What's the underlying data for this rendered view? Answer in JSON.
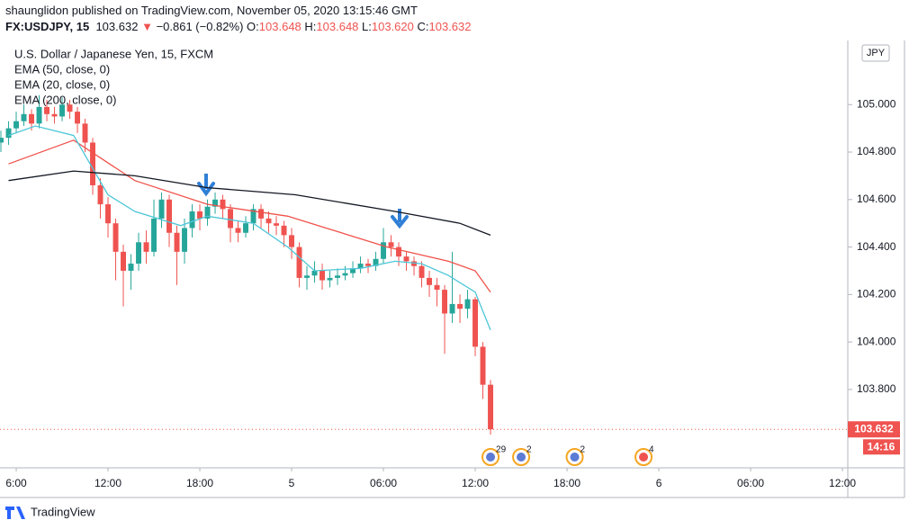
{
  "chart_data": {
    "type": "candlestick",
    "published": "shaunglidon published on TradingView.com, November 05, 2020 13:15:46 GMT",
    "quote": {
      "symbol": "FX:USDJPY, 15",
      "last": "103.632",
      "arrow": "▼",
      "change": "−0.861 (−0.82%)",
      "ohlc": [
        {
          "label": "O:",
          "value": "103.648"
        },
        {
          "label": "H:",
          "value": "103.648"
        },
        {
          "label": "L:",
          "value": "103.620"
        },
        {
          "label": "C:",
          "value": "103.632"
        }
      ]
    },
    "title": "U.S. Dollar / Japanese Yen, 15, FXCM",
    "currency": "JPY",
    "countdown": "14:16",
    "footer": "TradingView",
    "up_color": "#26a69a",
    "down_color": "#ef5350",
    "x": [
      -4,
      -2,
      0,
      2,
      4,
      6,
      8,
      10,
      12,
      14,
      16,
      18,
      20,
      22,
      24,
      26,
      28,
      30,
      32,
      34,
      36,
      38,
      40,
      42,
      44,
      46,
      48,
      50,
      52,
      54,
      56,
      58,
      60,
      62,
      64,
      66,
      68,
      70,
      72,
      74,
      76,
      78,
      80,
      82,
      84,
      86,
      88,
      90,
      92,
      94,
      96,
      98,
      100,
      102,
      104,
      106,
      108,
      110,
      112,
      114,
      116,
      118,
      120,
      122,
      124
    ],
    "open": [
      104.84,
      104.86,
      104.9,
      104.93,
      104.96,
      104.92,
      104.99,
      104.96,
      104.95,
      105.0,
      104.97,
      104.92,
      104.84,
      104.66,
      104.58,
      104.5,
      104.38,
      104.3,
      104.33,
      104.42,
      104.38,
      104.52,
      104.6,
      104.46,
      104.38,
      104.48,
      104.55,
      104.52,
      104.57,
      104.6,
      104.56,
      104.48,
      104.46,
      104.5,
      104.56,
      104.52,
      104.5,
      104.49,
      104.45,
      104.4,
      104.27,
      104.28,
      104.3,
      104.26,
      104.27,
      104.28,
      104.29,
      104.31,
      104.33,
      104.32,
      104.35,
      104.42,
      104.4,
      104.36,
      104.34,
      104.32,
      104.27,
      104.24,
      104.22,
      104.12,
      104.16,
      104.14,
      104.18,
      103.98,
      103.82
    ],
    "high": [
      104.89,
      104.93,
      104.97,
      105.0,
      104.98,
      105.04,
      105.02,
      104.99,
      105.03,
      105.02,
      104.99,
      104.94,
      104.86,
      104.69,
      104.61,
      104.52,
      104.41,
      104.37,
      104.46,
      104.47,
      104.6,
      104.63,
      104.62,
      104.49,
      104.52,
      104.58,
      104.58,
      104.6,
      104.63,
      104.62,
      104.58,
      104.51,
      104.53,
      104.58,
      104.58,
      104.55,
      104.53,
      104.51,
      104.48,
      104.42,
      104.32,
      104.34,
      104.33,
      104.3,
      104.31,
      104.32,
      104.34,
      104.36,
      104.35,
      104.38,
      104.48,
      104.45,
      104.42,
      104.38,
      104.36,
      104.34,
      104.3,
      104.27,
      104.24,
      104.38,
      104.2,
      104.22,
      104.19,
      104.0,
      103.84
    ],
    "low": [
      104.8,
      104.83,
      104.88,
      104.91,
      104.89,
      104.9,
      104.93,
      104.92,
      104.93,
      104.94,
      104.88,
      104.8,
      104.62,
      104.52,
      104.44,
      104.26,
      104.15,
      104.22,
      104.3,
      104.33,
      104.36,
      104.48,
      104.4,
      104.24,
      104.33,
      104.44,
      104.47,
      104.49,
      104.54,
      104.52,
      104.42,
      104.42,
      104.44,
      104.47,
      104.48,
      104.46,
      104.45,
      104.4,
      104.35,
      104.23,
      104.22,
      104.25,
      104.22,
      104.23,
      104.24,
      104.26,
      104.27,
      104.29,
      104.29,
      104.3,
      104.33,
      104.36,
      104.32,
      104.3,
      104.28,
      104.23,
      104.19,
      104.15,
      103.95,
      104.08,
      104.08,
      104.1,
      103.94,
      103.76,
      103.61
    ],
    "close": [
      104.86,
      104.9,
      104.93,
      104.96,
      104.92,
      104.99,
      104.96,
      104.95,
      105.0,
      104.97,
      104.92,
      104.84,
      104.66,
      104.58,
      104.5,
      104.38,
      104.3,
      104.33,
      104.42,
      104.38,
      104.52,
      104.6,
      104.46,
      104.38,
      104.48,
      104.55,
      104.52,
      104.57,
      104.6,
      104.56,
      104.48,
      104.46,
      104.5,
      104.56,
      104.52,
      104.5,
      104.49,
      104.45,
      104.4,
      104.27,
      104.28,
      104.3,
      104.26,
      104.27,
      104.28,
      104.29,
      104.31,
      104.33,
      104.32,
      104.35,
      104.42,
      104.4,
      104.36,
      104.34,
      104.32,
      104.27,
      104.24,
      104.22,
      104.12,
      104.16,
      104.14,
      104.18,
      103.98,
      103.82,
      103.632
    ],
    "lines": [
      {
        "name": "EMA (50, close, 0)",
        "color": "#f0524a",
        "x": [
          -2,
          15,
          31,
          50,
          71,
          97,
          113,
          120,
          124
        ],
        "values": [
          104.75,
          104.85,
          104.68,
          104.58,
          104.53,
          104.4,
          104.34,
          104.3,
          104.21
        ]
      },
      {
        "name": "EMA (20, close, 0)",
        "color": "#4dc6d8",
        "x": [
          -2,
          5,
          15,
          24,
          31,
          43,
          50,
          62,
          71,
          78,
          90,
          99,
          106,
          113,
          120,
          124
        ],
        "values": [
          104.87,
          104.91,
          104.87,
          104.62,
          104.55,
          104.49,
          104.53,
          104.5,
          104.4,
          104.3,
          104.31,
          104.34,
          104.33,
          104.28,
          104.21,
          104.05
        ]
      },
      {
        "name": "EMA (200, close, 0)",
        "color": "#131722",
        "x": [
          -2,
          15,
          31,
          50,
          73,
          99,
          116,
          124
        ],
        "values": [
          104.68,
          104.72,
          104.7,
          104.65,
          104.62,
          104.55,
          104.5,
          104.45
        ]
      }
    ],
    "xlim": [
      -4.24,
      217.4
    ],
    "xticks": [
      {
        "value": 0,
        "label": "6:00"
      },
      {
        "value": 24,
        "label": "12:00"
      },
      {
        "value": 48,
        "label": "18:00"
      },
      {
        "value": 72,
        "label": "5"
      },
      {
        "value": 96,
        "label": "06:00"
      },
      {
        "value": 120,
        "label": "12:00"
      },
      {
        "value": 144,
        "label": "18:00"
      },
      {
        "value": 168,
        "label": "6"
      },
      {
        "value": 192,
        "label": "06:00"
      },
      {
        "value": 216,
        "label": "12:00"
      }
    ],
    "ylim": [
      103.47,
      105.27
    ],
    "yticks": [
      {
        "value": 103.8,
        "label": "103.800"
      },
      {
        "value": 104,
        "label": "104.000"
      },
      {
        "value": 104.2,
        "label": "104.200"
      },
      {
        "value": 104.4,
        "label": "104.400"
      },
      {
        "value": 104.6,
        "label": "104.600"
      },
      {
        "value": 104.8,
        "label": "104.800"
      },
      {
        "value": 105,
        "label": "105.000"
      }
    ],
    "events": [
      {
        "x": 124,
        "label": "29"
      },
      {
        "x": 132,
        "label": "2"
      },
      {
        "x": 146,
        "label": "2"
      },
      {
        "x": 164,
        "label": "4"
      }
    ]
  }
}
